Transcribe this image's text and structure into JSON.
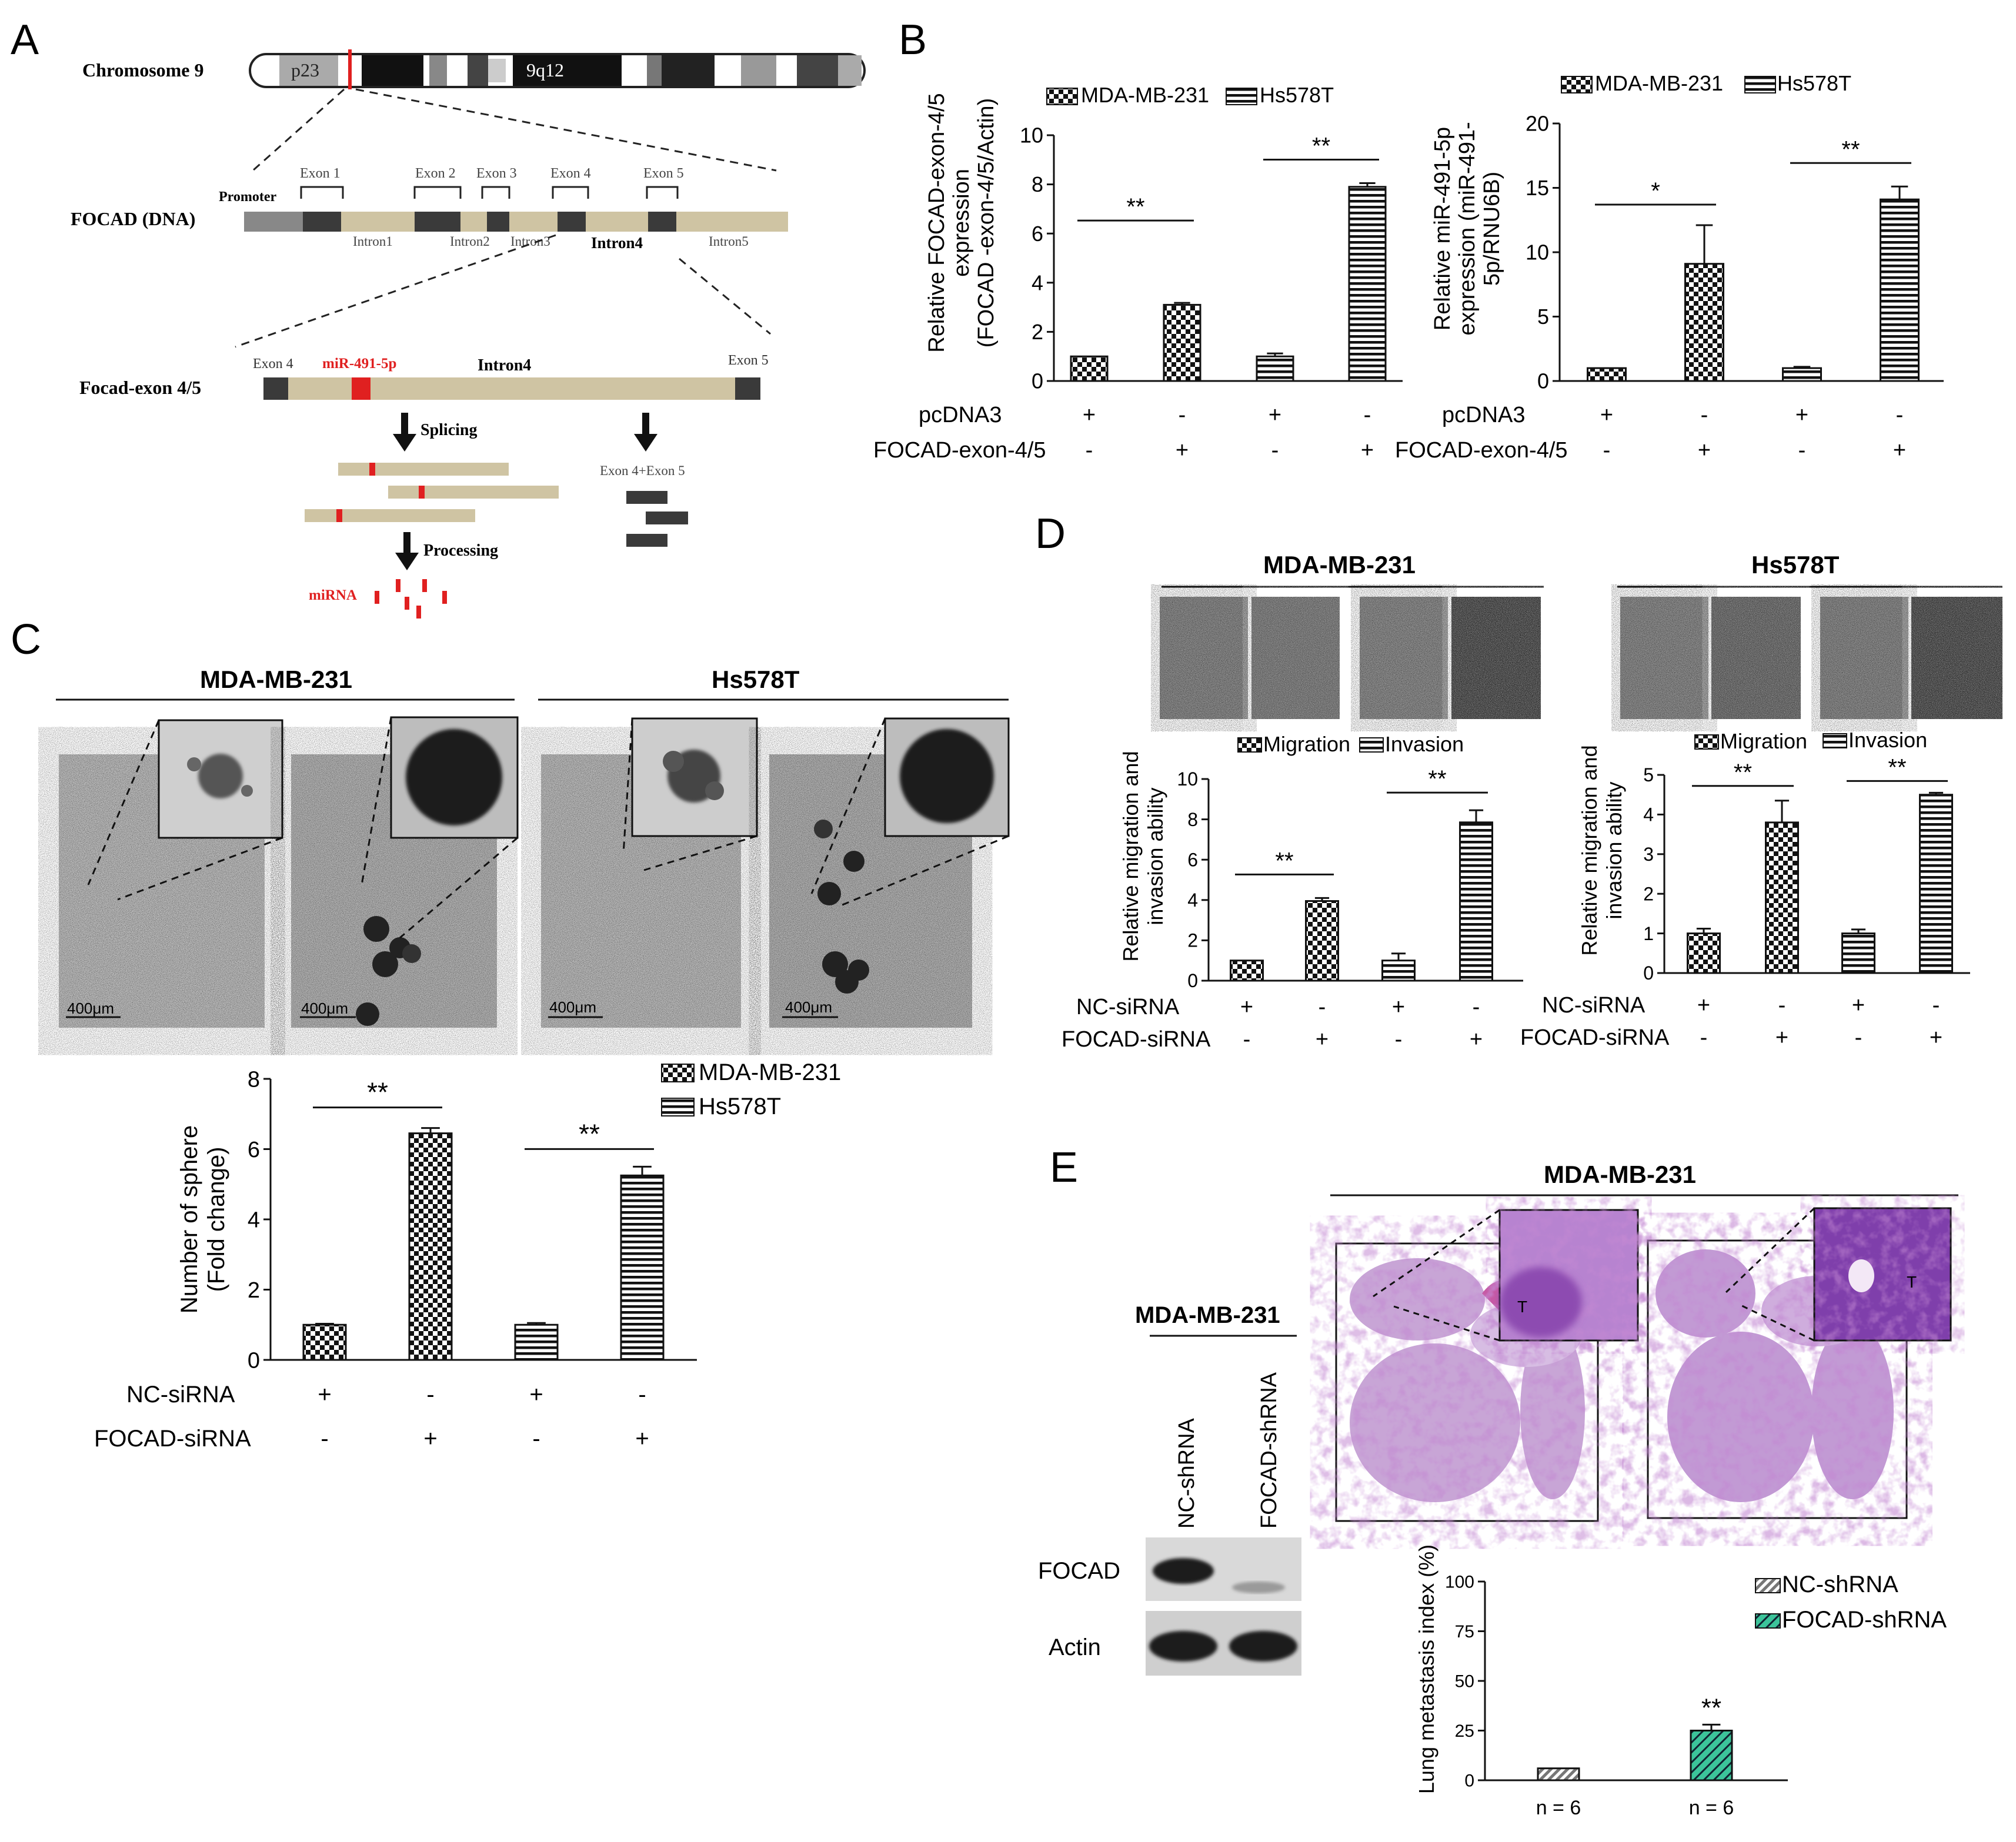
{
  "panels": {
    "A": {
      "letter": "A",
      "chromosome_label": "Chromosome 9",
      "band_p": "p23",
      "band_q": "9q12",
      "dna_label": "FOCAD (DNA)",
      "promoter": "Promoter",
      "exons": [
        "Exon 1",
        "Exon 2",
        "Exon 3",
        "Exon 4",
        "Exon 5"
      ],
      "introns": [
        "Intron1",
        "Intron2",
        "Intron3",
        "Intron4",
        "Intron5"
      ],
      "focad_exon_label": "Focad-exon 4/5",
      "zoom_exon4": "Exon 4",
      "zoom_exon5": "Exon 5",
      "zoom_mir": "miR-491-5p",
      "zoom_intron": "Intron4",
      "splicing": "Splicing",
      "exon45_label": "Exon 4+Exon 5",
      "processing": "Processing",
      "mirna": "miRNA",
      "colors": {
        "mirna": "#e02020",
        "intron": "#cfc4a3",
        "exon": "#3a3a3a"
      }
    },
    "B": {
      "letter": "B",
      "rows": {
        "row1": "pcDNA3",
        "row2": "FOCAD-exon-4/5"
      },
      "signs_row1": [
        "+",
        "-",
        "+",
        "-"
      ],
      "signs_row2": [
        "-",
        "+",
        "-",
        "+"
      ],
      "legend": [
        "MDA-MB-231",
        "Hs578T"
      ],
      "sig_left": [
        "**",
        "**"
      ],
      "sig_right": [
        "*",
        "**"
      ]
    },
    "C": {
      "letter": "C",
      "cell1": "MDA-MB-231",
      "cell2": "Hs578T",
      "scale": "400μm",
      "rows": {
        "row1": "NC-siRNA",
        "row2": "FOCAD-siRNA"
      },
      "signs_row1": [
        "+",
        "-",
        "+",
        "-"
      ],
      "signs_row2": [
        "-",
        "+",
        "-",
        "+"
      ],
      "legend": [
        "MDA-MB-231",
        "Hs578T"
      ],
      "sig": [
        "**",
        "**"
      ]
    },
    "D": {
      "letter": "D",
      "cell1": "MDA-MB-231",
      "cell2": "Hs578T",
      "legend": [
        "Migration",
        "Invasion"
      ],
      "rows": {
        "row1": "NC-siRNA",
        "row2": "FOCAD-siRNA"
      },
      "signs_row1": [
        "+",
        "-",
        "+",
        "-"
      ],
      "signs_row2": [
        "-",
        "+",
        "-",
        "+"
      ],
      "sig": [
        "**",
        "**"
      ]
    },
    "E": {
      "letter": "E",
      "cell": "MDA-MB-231",
      "blot_cell": "MDA-MB-231",
      "lanes": [
        "NC-shRNA",
        "FOCAD-shRNA"
      ],
      "blot_rows": [
        "FOCAD",
        "Actin"
      ],
      "tumor_mark": "T",
      "legend": [
        "NC-shRNA",
        "FOCAD-shRNA"
      ],
      "sig": "**",
      "colors": {
        "focad_bar": "#3cc49a"
      }
    }
  },
  "chart_data": [
    {
      "id": "B-left",
      "type": "bar",
      "ylabel": "Relative FOCAD-exon-4/5 expression (FOCAD -exon-4/5/Actin)",
      "ylabel_lines": [
        "Relative FOCAD-exon-4/5",
        "expression",
        "(FOCAD -exon-4/5/Actin)"
      ],
      "ylim": [
        0,
        10
      ],
      "yticks": [
        0,
        2,
        4,
        6,
        8,
        10
      ],
      "bars": [
        {
          "series": "MDA-MB-231",
          "value": 1.0,
          "error": 0.0
        },
        {
          "series": "MDA-MB-231",
          "value": 3.1,
          "error": 0.08
        },
        {
          "series": "Hs578T",
          "value": 1.0,
          "error": 0.12
        },
        {
          "series": "Hs578T",
          "value": 7.9,
          "error": 0.15
        }
      ]
    },
    {
      "id": "B-right",
      "type": "bar",
      "ylabel": "Relative miR-491-5p expression (miR-491-5p/RNU6B)",
      "ylabel_lines": [
        "Relative miR-491-5p",
        "expression (miR-491-",
        "5p/RNU6B)"
      ],
      "ylim": [
        0,
        20
      ],
      "yticks": [
        0,
        5,
        10,
        15,
        20
      ],
      "bars": [
        {
          "series": "MDA-MB-231",
          "value": 1.0,
          "error": 0.0
        },
        {
          "series": "MDA-MB-231",
          "value": 9.1,
          "error": 3.0
        },
        {
          "series": "Hs578T",
          "value": 1.0,
          "error": 0.1
        },
        {
          "series": "Hs578T",
          "value": 14.1,
          "error": 1.0
        }
      ]
    },
    {
      "id": "C",
      "type": "bar",
      "ylabel": "Number of sphere (Fold change)",
      "ylabel_lines": [
        "Number of sphere",
        "(Fold change)"
      ],
      "ylim": [
        0,
        8
      ],
      "yticks": [
        0,
        2,
        4,
        6,
        8
      ],
      "bars": [
        {
          "series": "MDA-MB-231",
          "value": 1.0,
          "error": 0.03
        },
        {
          "series": "MDA-MB-231",
          "value": 6.45,
          "error": 0.15
        },
        {
          "series": "Hs578T",
          "value": 1.0,
          "error": 0.05
        },
        {
          "series": "Hs578T",
          "value": 5.25,
          "error": 0.25
        }
      ]
    },
    {
      "id": "D-left",
      "type": "bar",
      "ylabel": "Relative migration and invasion ability",
      "ylabel_lines": [
        "Relative migration and",
        "invasion ability"
      ],
      "ylim": [
        0,
        10
      ],
      "yticks": [
        0,
        2,
        4,
        6,
        8,
        10
      ],
      "bars": [
        {
          "series": "Migration",
          "value": 1.0,
          "error": 0.0
        },
        {
          "series": "Migration",
          "value": 3.95,
          "error": 0.15
        },
        {
          "series": "Invasion",
          "value": 1.0,
          "error": 0.35
        },
        {
          "series": "Invasion",
          "value": 7.85,
          "error": 0.6
        }
      ]
    },
    {
      "id": "D-right",
      "type": "bar",
      "ylabel": "Relative migration and invasion ability",
      "ylabel_lines": [
        "Relative migration and",
        "invasion ability"
      ],
      "ylim": [
        0,
        5
      ],
      "yticks": [
        0,
        1,
        2,
        3,
        4,
        5
      ],
      "bars": [
        {
          "series": "Migration",
          "value": 1.0,
          "error": 0.12
        },
        {
          "series": "Migration",
          "value": 3.8,
          "error": 0.55
        },
        {
          "series": "Invasion",
          "value": 1.0,
          "error": 0.1
        },
        {
          "series": "Invasion",
          "value": 4.5,
          "error": 0.05
        }
      ]
    },
    {
      "id": "E",
      "type": "bar",
      "ylabel": "Lung metastasis index (%)",
      "ylabel_lines": [
        "Lung metastasis index (%)"
      ],
      "ylim": [
        0,
        100
      ],
      "yticks": [
        0,
        25,
        50,
        75,
        100
      ],
      "categories": [
        "n = 6",
        "n = 6"
      ],
      "bars": [
        {
          "series": "NC-shRNA",
          "value": 6,
          "error": 0
        },
        {
          "series": "FOCAD-shRNA",
          "value": 25,
          "error": 3
        }
      ]
    }
  ]
}
